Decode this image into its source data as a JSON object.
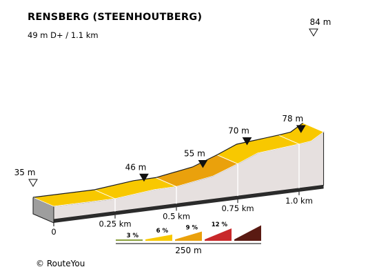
{
  "title": "RENSBERG (STEENHOUTBERG)",
  "subtitle": "49 m D+ / 1.1 km",
  "credit": "© RouteYou",
  "chart_data": {
    "type": "area",
    "title": "RENSBERG (STEENHOUTBERG)",
    "x_unit": "km",
    "y_unit": "m",
    "points": [
      {
        "km": 0,
        "elev": 35,
        "label": "35 m",
        "marker": "start"
      },
      {
        "km": 0.25,
        "elev": 40
      },
      {
        "km": 0.41,
        "elev": 46,
        "label": "46 m",
        "marker": "point"
      },
      {
        "km": 0.5,
        "elev": 48
      },
      {
        "km": 0.65,
        "elev": 55,
        "label": "55 m",
        "marker": "point"
      },
      {
        "km": 0.75,
        "elev": 63
      },
      {
        "km": 0.83,
        "elev": 70,
        "label": "70 m",
        "marker": "point"
      },
      {
        "km": 1.0,
        "elev": 76
      },
      {
        "km": 1.05,
        "elev": 78,
        "label": "78 m",
        "marker": "point"
      },
      {
        "km": 1.1,
        "elev": 84,
        "label": "84 m",
        "marker": "end"
      }
    ],
    "segments": [
      {
        "from_km": 0,
        "to_km": 0.25,
        "grade_class": "6"
      },
      {
        "from_km": 0.25,
        "to_km": 0.5,
        "grade_class": "6"
      },
      {
        "from_km": 0.5,
        "to_km": 0.75,
        "grade_class": "9"
      },
      {
        "from_km": 0.75,
        "to_km": 1.0,
        "grade_class": "6"
      },
      {
        "from_km": 1.0,
        "to_km": 1.1,
        "grade_class": "6"
      }
    ],
    "x_ticks": [
      {
        "km": 0,
        "label": "0"
      },
      {
        "km": 0.25,
        "label": "0.25 km"
      },
      {
        "km": 0.5,
        "label": "0.5 km"
      },
      {
        "km": 0.75,
        "label": "0.75 km"
      },
      {
        "km": 1.0,
        "label": "1.0 km"
      }
    ],
    "legend": {
      "items": [
        {
          "label": "3 %",
          "color": "#8aa03c"
        },
        {
          "label": "6 %",
          "color": "#f8c800"
        },
        {
          "label": "9 %",
          "color": "#eaa10c"
        },
        {
          "label": "12 %",
          "color": "#c8282a"
        },
        {
          "label": "",
          "color": "#5a1a12"
        }
      ],
      "scale_label": "250 m"
    },
    "colors": {
      "grade_6": "#f8c800",
      "grade_9": "#eaa10c",
      "side": "#e6e0df",
      "base": "#2b2b2b",
      "outline": "#1a1a1a"
    }
  }
}
